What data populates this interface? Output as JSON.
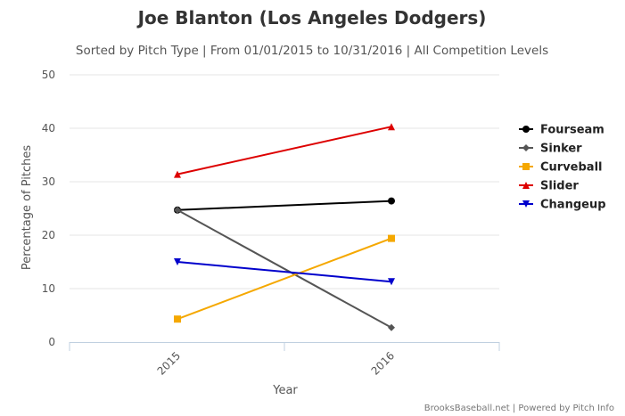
{
  "chart_data": {
    "type": "line",
    "title": "Joe Blanton (Los Angeles Dodgers)",
    "subtitle": "Sorted by Pitch Type | From 01/01/2015 to 10/31/2016 | All Competition Levels",
    "xlabel": "Year",
    "ylabel": "Percentage of Pitches",
    "categories": [
      "2015",
      "2016"
    ],
    "ylim": [
      0,
      50
    ],
    "yticks": [
      0,
      10,
      20,
      30,
      40,
      50
    ],
    "grid": true,
    "legend_position": "right",
    "series": [
      {
        "name": "Fourseam",
        "values": [
          24.7,
          26.4
        ],
        "color": "#000000",
        "marker": "circle"
      },
      {
        "name": "Sinker",
        "values": [
          24.7,
          2.7
        ],
        "color": "#555555",
        "marker": "diamond"
      },
      {
        "name": "Curveball",
        "values": [
          4.3,
          19.4
        ],
        "color": "#f5a800",
        "marker": "square"
      },
      {
        "name": "Slider",
        "values": [
          31.4,
          40.3
        ],
        "color": "#dd0000",
        "marker": "triangle"
      },
      {
        "name": "Changeup",
        "values": [
          15.0,
          11.3
        ],
        "color": "#0000cc",
        "marker": "triangle-down"
      }
    ],
    "credits": "BrooksBaseball.net | Powered by Pitch Info"
  }
}
